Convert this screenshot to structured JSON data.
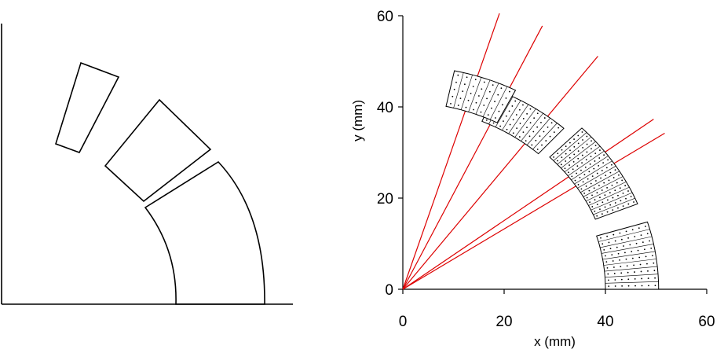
{
  "left_panel": {
    "description_shapes": [
      "block-outer-top",
      "block-middle",
      "block-inner-arc"
    ]
  },
  "chart_data": {
    "type": "scatter",
    "xlabel": "x (mm)",
    "ylabel": "y (mm)",
    "xlim": [
      0,
      60
    ],
    "ylim": [
      0,
      60
    ],
    "x_ticks": [
      "0",
      "20",
      "40",
      "60"
    ],
    "y_ticks": [
      "0",
      "20",
      "40",
      "60"
    ],
    "ray_color": "#dd0000",
    "ray_angles_deg": [
      72.5,
      64.5,
      53.0,
      37.0,
      33.5
    ],
    "blocks": [
      {
        "name": "block-1",
        "r_inner": 40,
        "r_outer": 50.5,
        "theta_start_deg": 0,
        "theta_end_deg": 17,
        "rows": 9,
        "cols": 8
      },
      {
        "name": "block-2",
        "r_inner": 41,
        "r_outer": 50,
        "theta_start_deg": 22,
        "theta_end_deg": 45,
        "rows": 15,
        "cols": 8
      },
      {
        "name": "block-3",
        "r_inner": 40,
        "r_outer": 47.5,
        "theta_start_deg": 48,
        "theta_end_deg": 67,
        "rows": 9,
        "cols": 6
      },
      {
        "name": "block-4",
        "r_inner": 41,
        "r_outer": 49,
        "theta_start_deg": 63,
        "theta_end_deg": 78,
        "rows": 7,
        "cols": 5
      }
    ]
  }
}
